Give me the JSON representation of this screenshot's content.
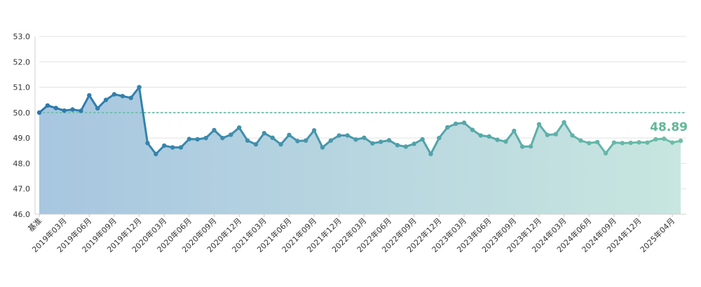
{
  "chart_data": {
    "type": "line",
    "title": "",
    "xlabel": "",
    "ylabel": "",
    "ylim": [
      46.0,
      53.0
    ],
    "yticks": [
      "53.0",
      "52.0",
      "51.0",
      "50.0",
      "49.0",
      "48.0",
      "47.0",
      "46.0"
    ],
    "reference_line": 50.0,
    "grid": true,
    "latest_value_label": "48.89",
    "x_tick_labels": [
      "基准",
      "2019年03月",
      "2019年06月",
      "2019年09月",
      "2019年12月",
      "2020年03月",
      "2020年06月",
      "2020年09月",
      "2020年12月",
      "2021年03月",
      "2021年06月",
      "2021年09月",
      "2021年12月",
      "2022年03月",
      "2022年06月",
      "2022年09月",
      "2022年12月",
      "2023年03月",
      "2023年06月",
      "2023年09月",
      "2023年12月",
      "2024年03月",
      "2024年06月",
      "2024年09月",
      "2024年12月",
      "2025年04月"
    ],
    "x_tick_indices": [
      0,
      3,
      6,
      9,
      12,
      15,
      18,
      21,
      24,
      27,
      30,
      33,
      36,
      39,
      42,
      45,
      48,
      51,
      54,
      57,
      60,
      63,
      66,
      69,
      72,
      76
    ],
    "values": [
      50.0,
      50.28,
      50.18,
      50.08,
      50.12,
      50.07,
      50.68,
      50.17,
      50.5,
      50.72,
      50.65,
      50.58,
      51.0,
      48.8,
      48.37,
      48.7,
      48.63,
      48.63,
      48.96,
      48.95,
      49.0,
      49.31,
      49.0,
      49.13,
      49.41,
      48.9,
      48.75,
      49.19,
      49.01,
      48.75,
      49.12,
      48.88,
      48.9,
      49.3,
      48.63,
      48.9,
      49.1,
      49.1,
      48.94,
      49.01,
      48.79,
      48.85,
      48.91,
      48.72,
      48.66,
      48.77,
      48.95,
      48.37,
      49.0,
      49.42,
      49.56,
      49.6,
      49.32,
      49.1,
      49.06,
      48.93,
      48.86,
      49.28,
      48.66,
      48.67,
      49.54,
      49.12,
      49.15,
      49.62,
      49.1,
      48.9,
      48.8,
      48.84,
      48.4,
      48.82,
      48.8,
      48.81,
      48.83,
      48.82,
      48.95,
      48.97,
      48.82,
      48.89
    ],
    "colors": {
      "line_start": "#2a77ad",
      "line_end": "#6cbfa8",
      "area_start": "#a7c6e0",
      "area_end": "#c8e6df",
      "reference_line": "#6cbfa8",
      "latest_label": "#5fb898",
      "grid": "#e1e1e1"
    }
  }
}
